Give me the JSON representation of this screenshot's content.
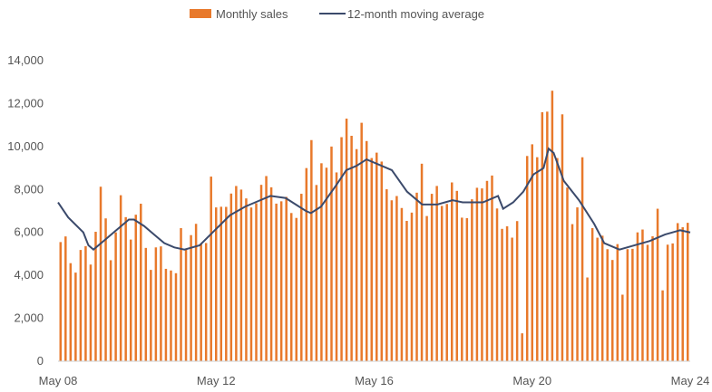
{
  "chart_data": {
    "type": "bar",
    "legend": {
      "placement": "top-center",
      "bar_label": "Monthly sales",
      "line_label": "12-month moving average"
    },
    "x_tick_labels": [
      "May 08",
      "May 12",
      "May 16",
      "May 20",
      "May 24"
    ],
    "ylim": [
      0,
      14000
    ],
    "y_ticks": [
      0,
      2000,
      4000,
      6000,
      8000,
      10000,
      12000,
      14000
    ],
    "y_tick_labels": [
      "0",
      "2,000",
      "4,000",
      "6,000",
      "8,000",
      "10,000",
      "12,000",
      "14,000"
    ],
    "grid": false,
    "colors": {
      "bars": "#E8792B",
      "line": "#3B4A6B",
      "text": "#555555"
    },
    "x_start": "May 08",
    "x_end": "May 24",
    "anchors": [
      {
        "t": 0,
        "v": 5200
      },
      {
        "t": 2,
        "v": 4800
      },
      {
        "t": 4,
        "v": 5200
      },
      {
        "t": 6,
        "v": 4700
      },
      {
        "t": 8,
        "v": 7400
      },
      {
        "t": 10,
        "v": 5600
      },
      {
        "t": 12,
        "v": 7200
      },
      {
        "t": 14,
        "v": 5900
      },
      {
        "t": 16,
        "v": 6900
      },
      {
        "t": 18,
        "v": 5000
      },
      {
        "t": 20,
        "v": 4800
      },
      {
        "t": 22,
        "v": 4200
      },
      {
        "t": 24,
        "v": 6500
      },
      {
        "t": 26,
        "v": 5800
      },
      {
        "t": 28,
        "v": 5400
      },
      {
        "t": 30,
        "v": 6200
      },
      {
        "t": 32,
        "v": 8000
      },
      {
        "t": 34,
        "v": 7000
      },
      {
        "t": 36,
        "v": 8400
      },
      {
        "t": 38,
        "v": 6900
      },
      {
        "t": 40,
        "v": 8800
      },
      {
        "t": 42,
        "v": 7300
      },
      {
        "t": 44,
        "v": 7900
      },
      {
        "t": 46,
        "v": 7000
      },
      {
        "t": 48,
        "v": 7600
      },
      {
        "t": 50,
        "v": 8500
      },
      {
        "t": 52,
        "v": 9300
      },
      {
        "t": 54,
        "v": 8300
      },
      {
        "t": 56,
        "v": 9600
      },
      {
        "t": 58,
        "v": 9900
      },
      {
        "t": 60,
        "v": 10800
      },
      {
        "t": 62,
        "v": 9800
      },
      {
        "t": 64,
        "v": 8600
      },
      {
        "t": 66,
        "v": 8300
      },
      {
        "t": 68,
        "v": 6800
      },
      {
        "t": 70,
        "v": 6800
      },
      {
        "t": 72,
        "v": 7400
      },
      {
        "t": 74,
        "v": 8000
      },
      {
        "t": 76,
        "v": 7200
      },
      {
        "t": 78,
        "v": 7800
      },
      {
        "t": 80,
        "v": 7500
      },
      {
        "t": 82,
        "v": 7000
      },
      {
        "t": 84,
        "v": 8300
      },
      {
        "t": 86,
        "v": 8200
      },
      {
        "t": 88,
        "v": 7000
      },
      {
        "t": 90,
        "v": 5000
      },
      {
        "t": 92,
        "v": 8200
      },
      {
        "t": 94,
        "v": 10200
      },
      {
        "t": 96,
        "v": 10500
      },
      {
        "t": 98,
        "v": 11000
      },
      {
        "t": 100,
        "v": 8800
      },
      {
        "t": 102,
        "v": 7000
      },
      {
        "t": 104,
        "v": 8200
      },
      {
        "t": 106,
        "v": 6600
      },
      {
        "t": 108,
        "v": 5600
      },
      {
        "t": 110,
        "v": 5300
      },
      {
        "t": 112,
        "v": 4800
      },
      {
        "t": 114,
        "v": 5900
      },
      {
        "t": 116,
        "v": 6000
      },
      {
        "t": 118,
        "v": 5800
      },
      {
        "t": 120,
        "v": 6600
      },
      {
        "t": 122,
        "v": 5800
      },
      {
        "t": 124,
        "v": 6400
      },
      {
        "t": 125,
        "v": 6700
      }
    ],
    "spikes": [
      {
        "t": 50,
        "v": 10300
      },
      {
        "t": 54,
        "v": 10000
      },
      {
        "t": 57,
        "v": 11300
      },
      {
        "t": 58,
        "v": 10500
      },
      {
        "t": 72,
        "v": 9200
      },
      {
        "t": 96,
        "v": 11600
      },
      {
        "t": 98,
        "v": 12600
      },
      {
        "t": 100,
        "v": 11500
      },
      {
        "t": 30,
        "v": 8600
      },
      {
        "t": 104,
        "v": 9500
      },
      {
        "t": 64,
        "v": 9300
      }
    ],
    "dips": [
      {
        "t": 23,
        "v": 4100
      },
      {
        "t": 92,
        "v": 1300
      },
      {
        "t": 112,
        "v": 3100
      },
      {
        "t": 120,
        "v": 3300
      },
      {
        "t": 105,
        "v": 3900
      }
    ],
    "moving_average": [
      {
        "t": 0,
        "v": 7400
      },
      {
        "t": 2,
        "v": 6700
      },
      {
        "t": 5,
        "v": 6000
      },
      {
        "t": 6,
        "v": 5400
      },
      {
        "t": 7,
        "v": 5200
      },
      {
        "t": 9,
        "v": 5600
      },
      {
        "t": 12,
        "v": 6200
      },
      {
        "t": 14,
        "v": 6600
      },
      {
        "t": 15,
        "v": 6600
      },
      {
        "t": 17,
        "v": 6300
      },
      {
        "t": 19,
        "v": 5900
      },
      {
        "t": 21,
        "v": 5500
      },
      {
        "t": 23,
        "v": 5300
      },
      {
        "t": 25,
        "v": 5200
      },
      {
        "t": 28,
        "v": 5400
      },
      {
        "t": 31,
        "v": 6100
      },
      {
        "t": 34,
        "v": 6800
      },
      {
        "t": 37,
        "v": 7200
      },
      {
        "t": 40,
        "v": 7500
      },
      {
        "t": 42,
        "v": 7700
      },
      {
        "t": 45,
        "v": 7600
      },
      {
        "t": 47,
        "v": 7300
      },
      {
        "t": 49,
        "v": 7000
      },
      {
        "t": 50,
        "v": 6900
      },
      {
        "t": 52,
        "v": 7200
      },
      {
        "t": 55,
        "v": 8200
      },
      {
        "t": 57,
        "v": 8900
      },
      {
        "t": 59,
        "v": 9100
      },
      {
        "t": 61,
        "v": 9400
      },
      {
        "t": 63,
        "v": 9200
      },
      {
        "t": 66,
        "v": 8900
      },
      {
        "t": 69,
        "v": 7900
      },
      {
        "t": 72,
        "v": 7300
      },
      {
        "t": 75,
        "v": 7300
      },
      {
        "t": 78,
        "v": 7500
      },
      {
        "t": 80,
        "v": 7400
      },
      {
        "t": 84,
        "v": 7400
      },
      {
        "t": 87,
        "v": 7700
      },
      {
        "t": 88,
        "v": 7100
      },
      {
        "t": 90,
        "v": 7400
      },
      {
        "t": 92,
        "v": 7900
      },
      {
        "t": 94,
        "v": 8700
      },
      {
        "t": 96,
        "v": 9000
      },
      {
        "t": 97,
        "v": 9900
      },
      {
        "t": 98,
        "v": 9700
      },
      {
        "t": 100,
        "v": 8400
      },
      {
        "t": 103,
        "v": 7500
      },
      {
        "t": 106,
        "v": 6400
      },
      {
        "t": 108,
        "v": 5500
      },
      {
        "t": 111,
        "v": 5200
      },
      {
        "t": 114,
        "v": 5400
      },
      {
        "t": 117,
        "v": 5600
      },
      {
        "t": 120,
        "v": 5900
      },
      {
        "t": 123,
        "v": 6100
      },
      {
        "t": 125,
        "v": 6000
      }
    ],
    "num_months": 126
  }
}
